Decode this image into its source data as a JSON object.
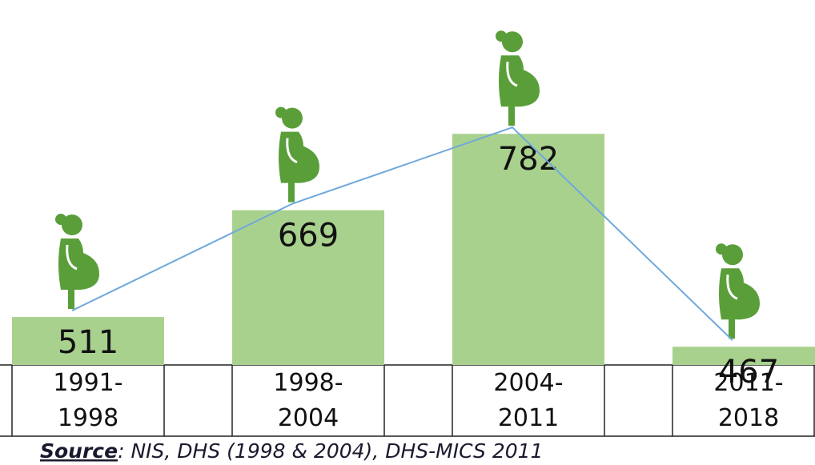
{
  "chart_data": {
    "type": "bar",
    "categories": [
      "1991-\n1998",
      "1998-\n2004",
      "2004-\n2011",
      "2011-\n2018"
    ],
    "series": [
      {
        "values": [
          511,
          669,
          782,
          467
        ],
        "color": "#a9d18e"
      }
    ],
    "line_color": "#6fa8dc",
    "icon_color": "#5a9e3a",
    "ylim": [
      440,
      800
    ],
    "source_label": "Source",
    "source_text": ": NIS, DHS (1998 & 2004), DHS-MICS 2011"
  }
}
